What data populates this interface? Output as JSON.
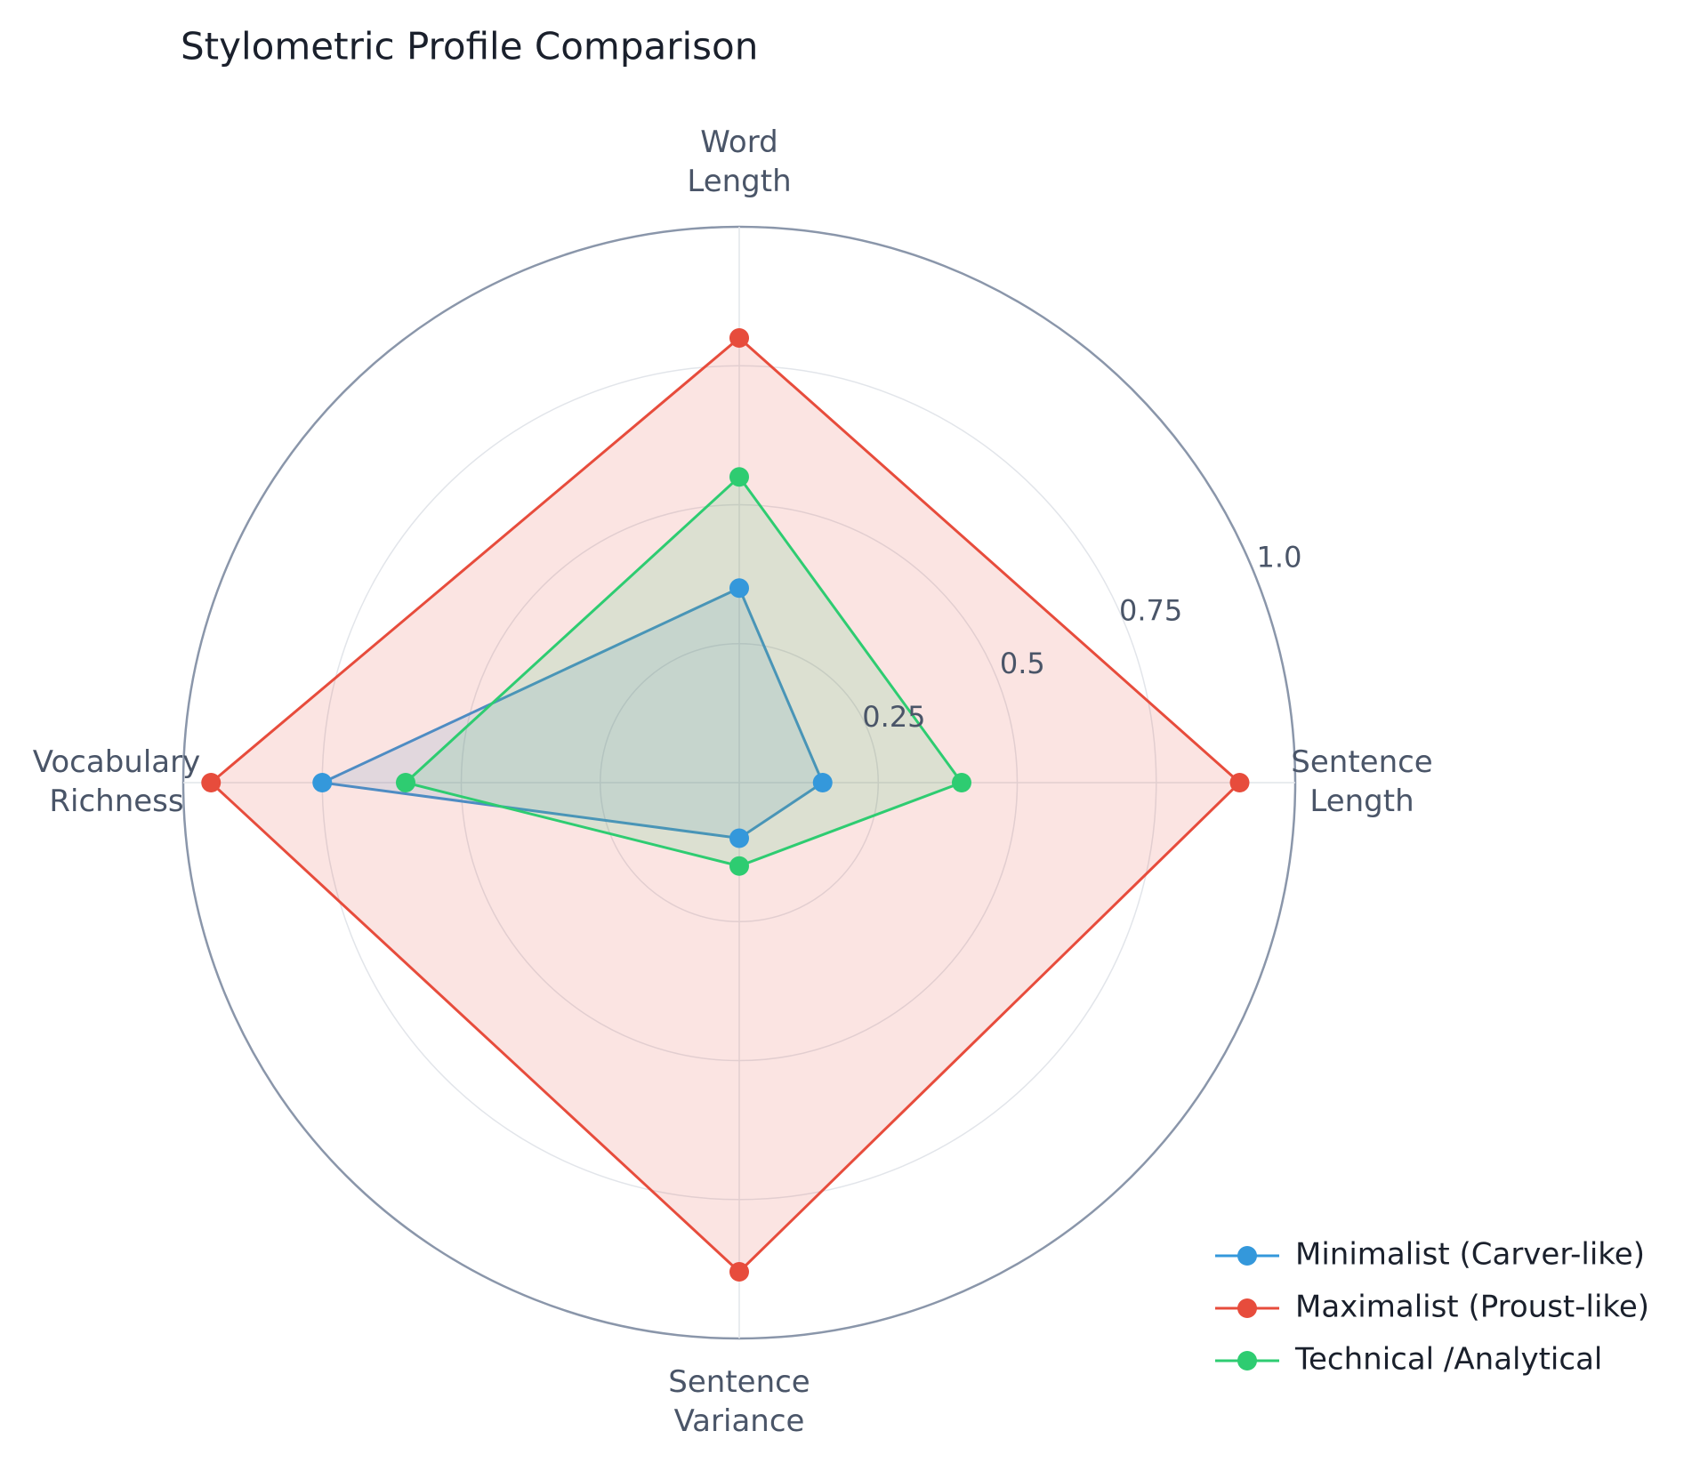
{
  "chart_data": {
    "type": "radar",
    "title": "Stylometric Profile Comparison",
    "categories": [
      "Sentence Length",
      "Word Length",
      "Vocabulary Richness",
      "Sentence Variance"
    ],
    "series": [
      {
        "name": "Minimalist (Carver-like)",
        "color": "#3498db",
        "values": [
          0.15,
          0.35,
          0.75,
          0.1
        ]
      },
      {
        "name": "Maximalist (Proust-like)",
        "color": "#e74c3c",
        "values": [
          0.9,
          0.8,
          0.95,
          0.88
        ]
      },
      {
        "name": "Technical /Analytical",
        "color": "#2ecc71",
        "values": [
          0.4,
          0.55,
          0.6,
          0.15
        ]
      }
    ],
    "rlim": [
      0,
      1
    ],
    "rticks": [
      0.25,
      0.5,
      0.75,
      {
        "value": 1,
        "label": "1.0"
      }
    ],
    "grid": true,
    "legend": "bottom-right"
  }
}
